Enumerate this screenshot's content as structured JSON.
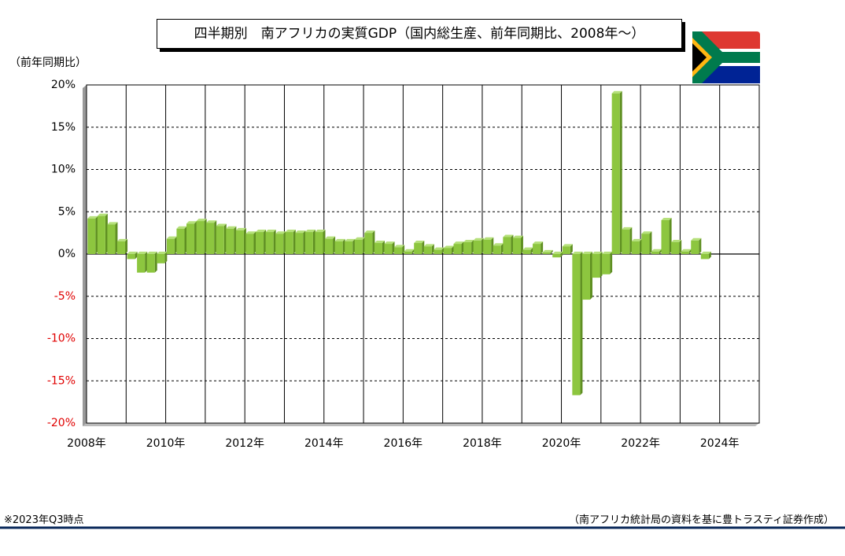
{
  "chart_data": {
    "type": "bar",
    "title": "四半期別　南アフリカの実質GDP（国内総生産、前年同期比、2008年～）",
    "y_label": "（前年同期比）",
    "footnote": "※2023年Q3時点",
    "source": "（南アフリカ統計局の資料を基に豊トラスティ証券作成）",
    "color": "#8dc63f",
    "categories": [
      "2008年",
      null,
      null,
      null,
      null,
      null,
      null,
      null,
      "2010年",
      null,
      null,
      null,
      null,
      null,
      null,
      null,
      "2012年",
      null,
      null,
      null,
      null,
      null,
      null,
      null,
      "2014年",
      null,
      null,
      null,
      null,
      null,
      null,
      null,
      "2016年",
      null,
      null,
      null,
      null,
      null,
      null,
      null,
      "2018年",
      null,
      null,
      null,
      null,
      null,
      null,
      null,
      "2020年",
      null,
      null,
      null,
      null,
      null,
      null,
      null,
      "2022年",
      null,
      null,
      null,
      null,
      null,
      null,
      null,
      "2024年",
      null,
      null,
      null
    ],
    "values": [
      4.2,
      4.5,
      3.5,
      1.5,
      -0.6,
      -2.2,
      -2.2,
      -1.1,
      1.8,
      3.0,
      3.6,
      3.9,
      3.7,
      3.3,
      3.0,
      2.8,
      2.4,
      2.6,
      2.6,
      2.4,
      2.6,
      2.5,
      2.6,
      2.6,
      1.8,
      1.5,
      1.5,
      1.7,
      2.5,
      1.3,
      1.2,
      0.8,
      0.3,
      1.3,
      0.9,
      0.5,
      0.7,
      1.2,
      1.4,
      1.6,
      1.7,
      1.0,
      2.0,
      1.9,
      0.5,
      1.2,
      0.2,
      -0.4,
      0.9,
      -16.7,
      -5.4,
      -2.8,
      -2.4,
      19.0,
      2.9,
      1.5,
      2.4,
      0.3,
      4.0,
      1.4,
      0.3,
      1.6,
      -0.6,
      null,
      null,
      null,
      null,
      null
    ],
    "ylim": [
      -20,
      20
    ],
    "yticks": [
      {
        "value": -20,
        "label": "-20%"
      },
      {
        "value": -15,
        "label": "-15%"
      },
      {
        "value": -10,
        "label": "-10%"
      },
      {
        "value": -5,
        "label": "-5%"
      },
      {
        "value": 0,
        "label": "0%"
      },
      {
        "value": 5,
        "label": "5%"
      },
      {
        "value": 10,
        "label": "10%"
      },
      {
        "value": 15,
        "label": "15%"
      },
      {
        "value": 20,
        "label": "20%"
      }
    ],
    "negative_label_color": "#e00000",
    "grid": true
  }
}
